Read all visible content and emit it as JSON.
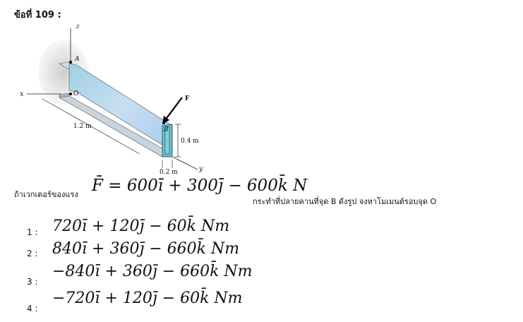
{
  "question": {
    "number_label": "ข้อที่ 109 :",
    "lead_text": "ถ้าเวกเตอร์ของแรง",
    "force_equation": "F̄ = 600ī + 300j̄ − 600k̄  N",
    "tail_text": "กระทำที่ปลายคานที่จุด B ดังรูป จงหาโมเมนต์รอบจุด O"
  },
  "figure": {
    "labels": {
      "z": "z",
      "x": "x",
      "y": "y",
      "A": "A",
      "O": "O",
      "F": "F",
      "B": "B",
      "len_beam": "1.2 m",
      "height": "0.4 m",
      "width": "0.2 m"
    }
  },
  "options": [
    {
      "num": "1 :",
      "expr": "720ī + 120j̄ − 60k̄  Nm"
    },
    {
      "num": "2 :",
      "expr": "840ī + 360j̄ − 660k̄  Nm"
    },
    {
      "num": "3 :",
      "expr": "−840ī + 360j̄ − 660k̄  Nm"
    },
    {
      "num": "4 :",
      "expr": "−720ī + 120j̄ − 60k̄  Nm"
    }
  ],
  "colors": {
    "beam_web": "#b8d6ef",
    "beam_flange": "#cfd8e2",
    "beam_end": "#63bdd0",
    "wall_shadow": "#d9d9d9",
    "force_arrow": "#000000"
  }
}
